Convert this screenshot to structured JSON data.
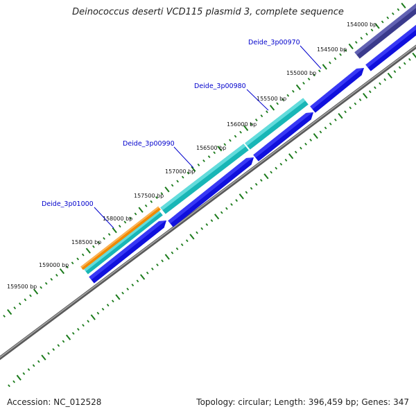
{
  "title": "Deinococcus deserti VCD115 plasmid 3, complete sequence",
  "footer": {
    "accession": "Accession: NC_012528",
    "summary": "Topology: circular; Length: 396,459 bp; Genes: 347"
  },
  "colors": {
    "backbone": "#808080",
    "cds_forward": "#1010dd",
    "cds_forward_light": "#4a4aff",
    "gene_cyan": "#18b6b6",
    "gene_cyan_light": "#7ce8e8",
    "gene_orange": "#f08800",
    "gene_orange_light": "#ffc070",
    "gene_dark": "#3a3a8c",
    "gene_dark_light": "#7070c0",
    "tick": "#1a7a1a",
    "label": "#0000cc"
  },
  "ticks": [
    {
      "label": "154000 bp"
    },
    {
      "label": "154500 bp"
    },
    {
      "label": "155000 bp"
    },
    {
      "label": "155500 bp"
    },
    {
      "label": "156000 bp"
    },
    {
      "label": "156500 bp"
    },
    {
      "label": "157000 bp"
    },
    {
      "label": "157500 bp"
    },
    {
      "label": "158000 bp"
    },
    {
      "label": "158500 bp"
    },
    {
      "label": "159000 bp"
    },
    {
      "label": "159500 bp"
    }
  ],
  "gene_labels": [
    {
      "text": "Deide_3p00970"
    },
    {
      "text": "Deide_3p00980"
    },
    {
      "text": "Deide_3p00990"
    },
    {
      "text": "Deide_3p01000"
    }
  ]
}
